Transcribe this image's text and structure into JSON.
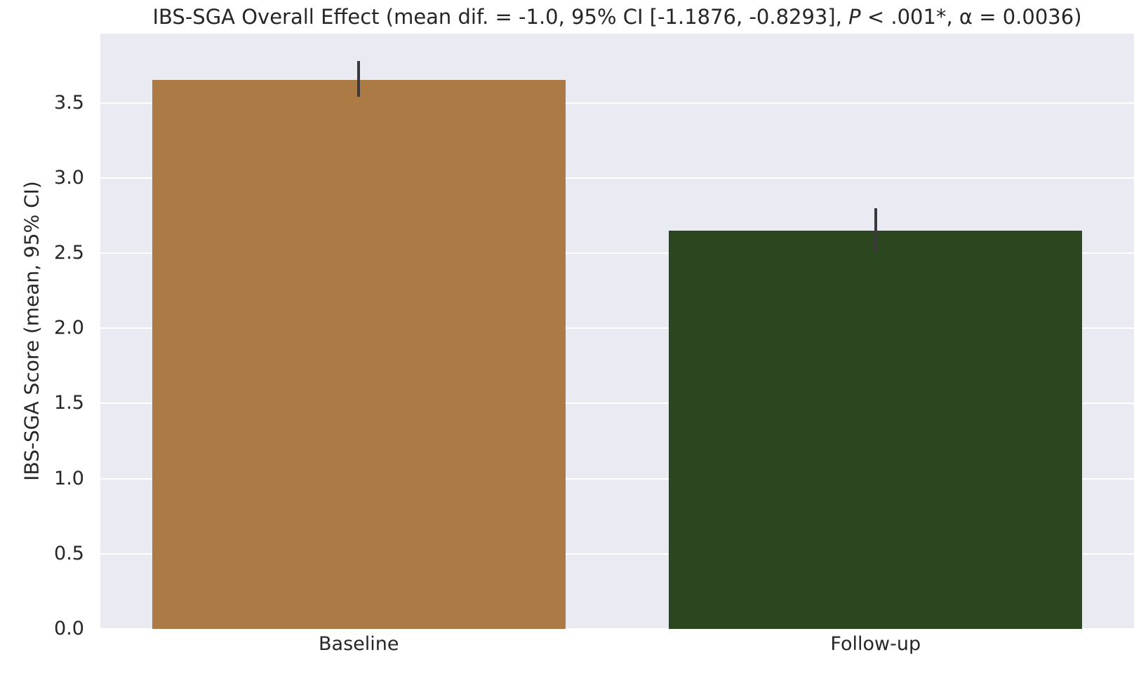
{
  "figure": {
    "title_prefix": "IBS-SGA Overall Effect (mean dif. = -1.0, 95% CI [-1.1876, -0.8293], ",
    "title_p_symbol": "P",
    "title_suffix": " < .001*, α = 0.0036)"
  },
  "chart_data": {
    "type": "bar",
    "title": "IBS-SGA Overall Effect (mean dif. = -1.0, 95% CI [-1.1876, -0.8293], P < .001*, α = 0.0036)",
    "categories": [
      "Baseline",
      "Follow-up"
    ],
    "values": [
      3.65,
      2.65
    ],
    "error_bars": {
      "ci_low": [
        3.54,
        2.5
      ],
      "ci_high": [
        3.78,
        2.8
      ]
    },
    "xlabel": "",
    "ylabel": "IBS-SGA Score (mean, 95% CI)",
    "yticks": [
      0.0,
      0.5,
      1.0,
      1.5,
      2.0,
      2.5,
      3.0,
      3.5
    ],
    "ylim": [
      0,
      3.96
    ],
    "grid": true,
    "legend": false,
    "stats_in_title": {
      "mean_diff": -1.0,
      "ci_95": [
        -1.1876,
        -0.8293
      ],
      "p_value": "< .001*",
      "alpha": 0.0036
    },
    "colors": {
      "bars": [
        "#ac7a44",
        "#2c4720"
      ],
      "plot_background": "#eaeaf2",
      "gridline": "#ffffff",
      "error_bar": "#3a3a3a",
      "text": "#262626"
    }
  }
}
